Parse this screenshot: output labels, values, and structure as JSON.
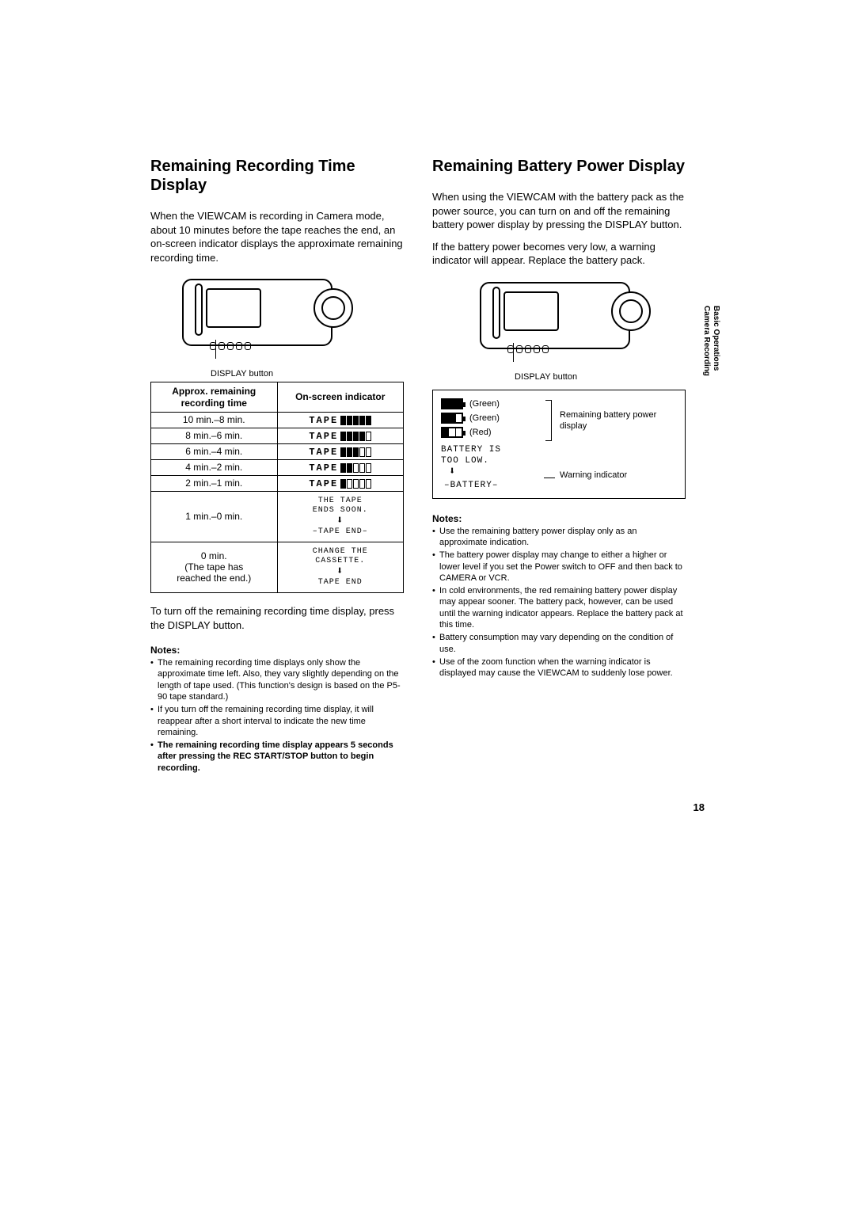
{
  "page_number": "18",
  "side_tab": {
    "line1": "Basic Operations",
    "line2": "Camera Recording"
  },
  "left": {
    "heading": "Remaining Recording Time Display",
    "intro": "When the VIEWCAM is recording in Camera mode, about 10 minutes before the tape reaches the end, an on-screen indicator displays the approximate remaining recording time.",
    "display_button_label": "DISPLAY button",
    "table": {
      "header_left": "Approx. remaining recording time",
      "header_right": "On-screen indicator",
      "rows": [
        {
          "time": "10 min.–8 min.",
          "filled": 5
        },
        {
          "time": "8 min.–6 min.",
          "filled": 4
        },
        {
          "time": "6 min.–4 min.",
          "filled": 3
        },
        {
          "time": "4 min.–2 min.",
          "filled": 2
        },
        {
          "time": "2 min.–1 min.",
          "filled": 1
        }
      ],
      "row_tape_end": {
        "time": "1 min.–0 min.",
        "line1": "THE TAPE",
        "line2": "ENDS SOON.",
        "flash": "TAPE END"
      },
      "row_change": {
        "time_line1": "0 min.",
        "time_line2": "(The tape has",
        "time_line3": "reached the end.)",
        "line1": "CHANGE THE",
        "line2": "CASSETTE.",
        "end": "TAPE END"
      },
      "tape_word": "TAPE"
    },
    "post_table": "To turn off the remaining recording time display, press the DISPLAY button.",
    "notes_heading": "Notes:",
    "notes": [
      "The remaining recording time displays only show the approximate time left. Also, they vary slightly depending on the length of tape used. (This function's design is based on the P5-90 tape standard.)",
      "If you turn off the remaining recording time display, it will reappear after a short interval to indicate the new time remaining."
    ],
    "bold_note": "The remaining recording time display appears 5 seconds after pressing the REC START/STOP button to begin recording."
  },
  "right": {
    "heading": "Remaining Battery Power Display",
    "intro1": "When using the VIEWCAM with the battery pack as the power source, you can turn on and off the remaining battery power display by pressing the DISPLAY button.",
    "intro2": "If the battery power becomes very low, a warning indicator will appear. Replace the battery pack.",
    "display_button_label": "DISPLAY button",
    "battery_labels": {
      "green": "(Green)",
      "red": "(Red)",
      "remaining": "Remaining battery power display",
      "warning": "Warning indicator",
      "too_low_line1": "BATTERY IS",
      "too_low_line2": "TOO LOW.",
      "battery_flash": "BATTERY"
    },
    "notes_heading": "Notes:",
    "notes": [
      "Use the remaining battery power display only as an approximate indication.",
      "The battery power display may change to either a higher or lower level if you set the Power switch to OFF and then back to CAMERA or VCR.",
      "In cold environments, the red remaining battery power display may appear sooner. The battery pack, however, can be used until the warning indicator appears. Replace the battery pack at this time.",
      "Battery consumption may vary depending on the condition of use.",
      "Use of the zoom function when the warning indicator is displayed may cause the VIEWCAM to suddenly lose power."
    ]
  },
  "colors": {
    "text": "#000000",
    "background": "#ffffff",
    "border": "#000000"
  }
}
